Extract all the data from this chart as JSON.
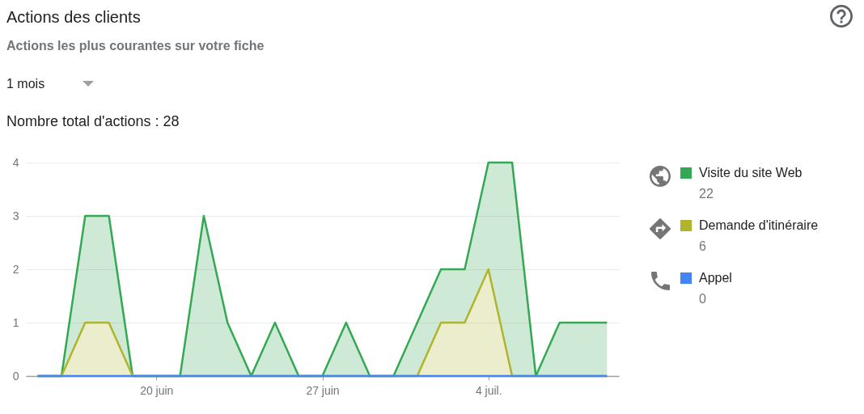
{
  "chart_data": {
    "type": "area",
    "title": "Actions des clients",
    "subtitle": "Actions les plus courantes sur votre fiche",
    "annotations": [
      "1 mois",
      "Nombre total d'actions : 28",
      "22",
      "6",
      "0"
    ],
    "x": [
      "--06-15",
      "--06-16",
      "--06-17",
      "--06-18",
      "--06-19",
      "--06-20",
      "--06-21",
      "--06-22",
      "--06-23",
      "--06-24",
      "--06-25",
      "--06-26",
      "--06-27",
      "--06-28",
      "--06-29",
      "--06-30",
      "--07-01",
      "--07-02",
      "--07-03",
      "--07-04",
      "--07-05",
      "--07-06",
      "--07-07",
      "--07-08",
      "--07-09"
    ],
    "series": [
      {
        "name": "Appel",
        "type": "line",
        "color": "#4285f4",
        "values": [
          0,
          0,
          0,
          0,
          0,
          0,
          0,
          0,
          0,
          0,
          0,
          0,
          0,
          0,
          0,
          0,
          0,
          0,
          0,
          0,
          0,
          0,
          0,
          0,
          0
        ]
      },
      {
        "name": "Demande d'itinéraire",
        "color": "#afb42b",
        "values": [
          0,
          0,
          1,
          1,
          0,
          0,
          0,
          0,
          0,
          0,
          0,
          0,
          0,
          0,
          0,
          0,
          0,
          1,
          1,
          2,
          0,
          0,
          0,
          0,
          0
        ]
      },
      {
        "name": "Visite du site Web",
        "color": "#34a853",
        "values": [
          0,
          0,
          2,
          2,
          0,
          0,
          0,
          3,
          1,
          0,
          1,
          0,
          0,
          1,
          0,
          0,
          1,
          1,
          1,
          2,
          4,
          0,
          1,
          1,
          1
        ]
      }
    ],
    "stacked": true,
    "xlim": [
      "--06-14T12:00",
      "--07-09T12:00"
    ],
    "xticks": [
      {
        "value": "--06-20",
        "label": "20 juin"
      },
      {
        "value": "--06-27",
        "label": "27 juin"
      },
      {
        "value": "--07-04",
        "label": "4 juil."
      }
    ],
    "ylim": [
      0,
      4
    ],
    "yticks": [
      0,
      1,
      2,
      3,
      4
    ],
    "grid": "y",
    "legend": "right"
  }
}
